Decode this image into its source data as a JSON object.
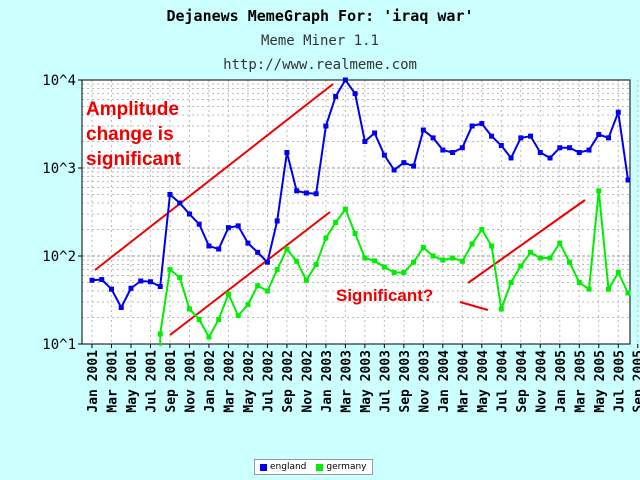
{
  "header": {
    "title": "Dejanews MemeGraph For: 'iraq war'",
    "subtitle": "Meme Miner 1.1",
    "url": "http://www.realmeme.com"
  },
  "chart_data": {
    "type": "line",
    "yscale": "log",
    "ylim": [
      10,
      10000
    ],
    "y_ticks": [
      "10^1",
      "10^2",
      "10^3",
      "10^4"
    ],
    "grid": true,
    "x_tick_labels": [
      "Jan 2001",
      "Mar 2001",
      "May 2001",
      "Jul 2001",
      "Sep 2001",
      "Nov 2001",
      "Jan 2002",
      "Mar 2002",
      "May 2002",
      "Jul 2002",
      "Sep 2002",
      "Nov 2002",
      "Jan 2003",
      "Mar 2003",
      "May 2003",
      "Jul 2003",
      "Sep 2003",
      "Nov 2003",
      "Jan 2004",
      "Mar 2004",
      "May 2004",
      "Jul 2004",
      "Sep 2004",
      "Nov 2004",
      "Jan 2005",
      "Mar 2005",
      "May 2005",
      "Jul 2005",
      "Sep 2005"
    ],
    "series": [
      {
        "name": "england",
        "color": "#0000ee",
        "values": [
          53,
          54,
          42,
          26,
          43,
          52,
          51,
          45,
          500,
          400,
          300,
          230,
          130,
          120,
          210,
          220,
          140,
          110,
          85,
          250,
          1500,
          550,
          520,
          510,
          3000,
          6500,
          10000,
          7000,
          2000,
          2500,
          1400,
          950,
          1150,
          1050,
          2700,
          2200,
          1600,
          1500,
          1700,
          3000,
          3200,
          2300,
          1800,
          1300,
          2200,
          2300,
          1500,
          1300,
          1700,
          1700,
          1500,
          1600,
          2400,
          2200,
          4300,
          730
        ]
      },
      {
        "name": "germany",
        "color": "#00ee00",
        "values": [
          null,
          null,
          null,
          null,
          null,
          null,
          null,
          13,
          70,
          57,
          25,
          19,
          12,
          19,
          37,
          21,
          28,
          46,
          40,
          70,
          120,
          87,
          53,
          80,
          160,
          240,
          340,
          180,
          95,
          88,
          75,
          65,
          65,
          85,
          125,
          100,
          90,
          95,
          87,
          137,
          200,
          130,
          25,
          50,
          77,
          110,
          95,
          95,
          140,
          85,
          50,
          42,
          550,
          42,
          65,
          38
        ]
      }
    ],
    "annotations": [
      {
        "text": "Amplitude\nchange is\nsignificant",
        "color": "#ee0000"
      },
      {
        "text": "Significant?",
        "color": "#ee0000"
      }
    ]
  },
  "legend": {
    "england": "england",
    "germany": "germany"
  }
}
